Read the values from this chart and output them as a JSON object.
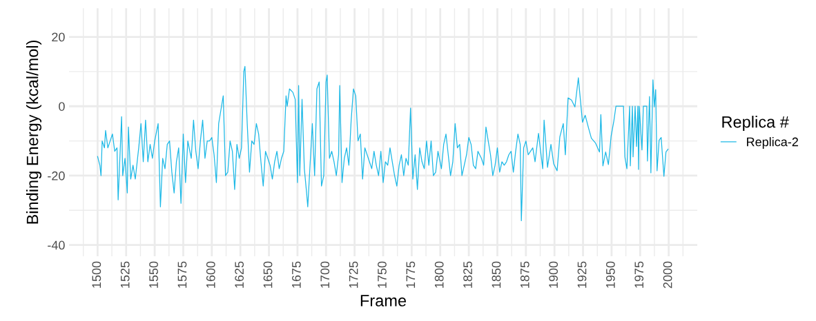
{
  "chart_data": {
    "type": "line",
    "xlabel": "Frame",
    "ylabel": "Binding Energy (kcal/mol)",
    "legend_title": "Replica #",
    "legend": "right",
    "grid": true,
    "line_style": "solid",
    "marker": "none",
    "xlim": [
      1475,
      2025
    ],
    "ylim": [
      -43.25,
      28.25
    ],
    "xticks": [
      {
        "value": 1487.5,
        "label": null
      },
      1500,
      {
        "value": 1512.5,
        "label": null
      },
      1525,
      {
        "value": 1537.5,
        "label": null
      },
      1550,
      {
        "value": 1562.5,
        "label": null
      },
      1575,
      {
        "value": 1587.5,
        "label": null
      },
      1600,
      {
        "value": 1612.5,
        "label": null
      },
      1625,
      {
        "value": 1637.5,
        "label": null
      },
      1650,
      {
        "value": 1662.5,
        "label": null
      },
      1675,
      {
        "value": 1687.5,
        "label": null
      },
      1700,
      {
        "value": 1712.5,
        "label": null
      },
      1725,
      {
        "value": 1737.5,
        "label": null
      },
      1750,
      {
        "value": 1762.5,
        "label": null
      },
      1775,
      {
        "value": 1787.5,
        "label": null
      },
      1800,
      {
        "value": 1812.5,
        "label": null
      },
      1825,
      {
        "value": 1837.5,
        "label": null
      },
      1850,
      {
        "value": 1862.5,
        "label": null
      },
      1875,
      {
        "value": 1887.5,
        "label": null
      },
      1900,
      {
        "value": 1912.5,
        "label": null
      },
      1925,
      {
        "value": 1937.5,
        "label": null
      },
      1950,
      {
        "value": 1962.5,
        "label": null
      },
      1975,
      {
        "value": 1987.5,
        "label": null
      },
      2000,
      {
        "value": 2012.5,
        "label": null
      }
    ],
    "yticks": [
      -40,
      {
        "value": -30,
        "label": null
      },
      -20,
      {
        "value": -10,
        "label": null
      },
      0,
      {
        "value": 10,
        "label": null
      },
      20
    ],
    "series": [
      {
        "name": "Replica-2",
        "color": "#1cb8e6",
        "x": [
          1500,
          1502,
          1503,
          1504,
          1506,
          1507,
          1509,
          1511,
          1513,
          1515,
          1517,
          1518,
          1521,
          1522,
          1524,
          1526,
          1527,
          1529,
          1531,
          1533,
          1536,
          1538,
          1540,
          1542,
          1544,
          1546,
          1548,
          1550,
          1553,
          1555,
          1557,
          1559,
          1561,
          1563,
          1565,
          1567,
          1569,
          1571,
          1573,
          1575,
          1577,
          1579,
          1582,
          1584,
          1586,
          1588,
          1590,
          1592,
          1594,
          1596,
          1598,
          1600,
          1602,
          1604,
          1606,
          1608,
          1610,
          1612,
          1614,
          1616,
          1618,
          1620,
          1622,
          1624,
          1626,
          1628,
          1629,
          1631,
          1633,
          1635,
          1637,
          1639,
          1641,
          1643,
          1645,
          1647,
          1649,
          1651,
          1653,
          1655,
          1657,
          1659,
          1661,
          1663,
          1665,
          1666,
          1668,
          1671,
          1673,
          1675,
          1676,
          1677,
          1679,
          1681,
          1683,
          1684,
          1686,
          1688,
          1690,
          1692,
          1694,
          1696,
          1698,
          1700,
          1701,
          1703,
          1705,
          1707,
          1709,
          1711,
          1712,
          1714,
          1716,
          1718,
          1720,
          1722,
          1724,
          1726,
          1728,
          1730,
          1732,
          1734,
          1736,
          1738,
          1740,
          1742,
          1744,
          1746,
          1748,
          1750,
          1752,
          1754,
          1756,
          1758,
          1760,
          1762,
          1764,
          1766,
          1768,
          1770,
          1772,
          1774,
          1776,
          1778,
          1780,
          1782,
          1784,
          1786,
          1788,
          1790,
          1792,
          1794,
          1796,
          1798,
          1801,
          1803,
          1805,
          1807,
          1809,
          1811,
          1813,
          1815,
          1817,
          1819,
          1821,
          1823,
          1825,
          1827,
          1829,
          1831,
          1833,
          1836,
          1838,
          1840,
          1842,
          1844,
          1846,
          1848,
          1850,
          1852,
          1854,
          1856,
          1858,
          1860,
          1862,
          1864,
          1866,
          1868,
          1870,
          1871,
          1873,
          1875,
          1877,
          1879,
          1881,
          1883,
          1886,
          1889.7,
          1890.9,
          1893.9,
          1896.9,
          1899.3,
          1902.3,
          1904.7,
          1907.7,
          1909.5,
          1911.9,
          1914.9,
          1917.9,
          1920.9,
          1924.5,
          1926.9,
          1929.9,
          1932.3,
          1935.9,
          1939.4,
          1940.6,
          1942.4,
          1944.8,
          1947.2,
          1949.6,
          1952,
          1953.8,
          1960.4,
          1961.6,
          1963.4,
          1965.8,
          1966.4,
          1968.2,
          1968.8,
          1970.6,
          1971.8,
          1973,
          1973.6,
          1974.2,
          1976.6,
          1977.8,
          1980.8,
          1981.4,
          1983.2,
          1984.4,
          1986.2,
          1987.4,
          1988.6,
          1989.8,
          1991.6,
          1993.4,
          1995.8,
          1997.6,
          1999.4
        ],
        "values": [
          -14.5,
          -17,
          -20,
          -10,
          -12,
          -7,
          -12,
          -10,
          -8,
          -13,
          -12,
          -27,
          -3,
          -20,
          -15,
          -25,
          -6,
          -21,
          -17,
          -21,
          -12,
          -5,
          -16,
          -4,
          -16,
          -11,
          -15,
          -10,
          -5,
          -29,
          -15,
          -18,
          -11,
          -10,
          -19,
          -25,
          -16,
          -12,
          -28,
          -8,
          -22,
          -10,
          -15,
          -4,
          -13,
          -18,
          -10,
          -4,
          -15,
          -10,
          -10,
          -9,
          -14,
          -22,
          -5,
          -1,
          3,
          -20,
          -19,
          -10,
          -13,
          -24,
          -11,
          -15,
          -12,
          10,
          11.5,
          -5,
          -19,
          -10,
          -11,
          -5,
          -8,
          -16,
          -23,
          -13,
          -15,
          -17,
          -21,
          -16,
          -13,
          -18,
          -15,
          -13,
          3,
          0,
          5,
          4,
          2,
          -22,
          6,
          -20,
          2,
          -18,
          -25,
          -29,
          -17,
          -5,
          -20,
          5,
          7,
          -23,
          -20,
          7,
          9,
          -15,
          -13,
          -16,
          -20,
          -14,
          6,
          -22,
          -15,
          -12,
          -17,
          -4,
          5,
          3,
          -10,
          -8,
          -21,
          -12,
          -14,
          -16,
          -18,
          -13,
          -17,
          -20,
          -13,
          -22,
          -16,
          -17,
          -12,
          -16,
          -20,
          -23,
          -17,
          -14,
          -20,
          -15,
          -17,
          -0.5,
          -21,
          -14,
          -24,
          -12,
          -16,
          -18,
          -10,
          -17,
          -10,
          -20,
          -19,
          -13,
          -18,
          -11,
          -8,
          -14,
          -20,
          -16,
          -5,
          -12,
          -11,
          -20,
          -17,
          -14,
          -9,
          -11,
          -17,
          -18,
          -13,
          -15,
          -17,
          -6,
          -10,
          -14,
          -20,
          -17,
          -12,
          -19,
          -16,
          -17,
          -16,
          -14,
          -13,
          -19,
          -13,
          -8,
          -11,
          -33,
          -12,
          -10,
          -14,
          -13,
          -12,
          -16,
          -7.8,
          -18,
          -4,
          -17.6,
          -11,
          -16.6,
          -18.6,
          -8.8,
          -5,
          -14,
          2.4,
          1.8,
          -0.2,
          8.2,
          -4.6,
          -2.6,
          -6.4,
          -9.2,
          -10.6,
          -13.2,
          -2.4,
          -17.2,
          -13.2,
          -16.8,
          -8.6,
          -4.2,
          0,
          0,
          -14.6,
          -18,
          0,
          -17.2,
          0,
          -14.6,
          0,
          -11.6,
          0,
          -18.2,
          0,
          -12.6,
          0,
          0,
          -15.8,
          2.8,
          -19.2,
          7.6,
          -0.2,
          4.8,
          -18.6,
          -9.8,
          -9,
          -20.2,
          -13.2,
          -12.4
        ]
      }
    ]
  }
}
